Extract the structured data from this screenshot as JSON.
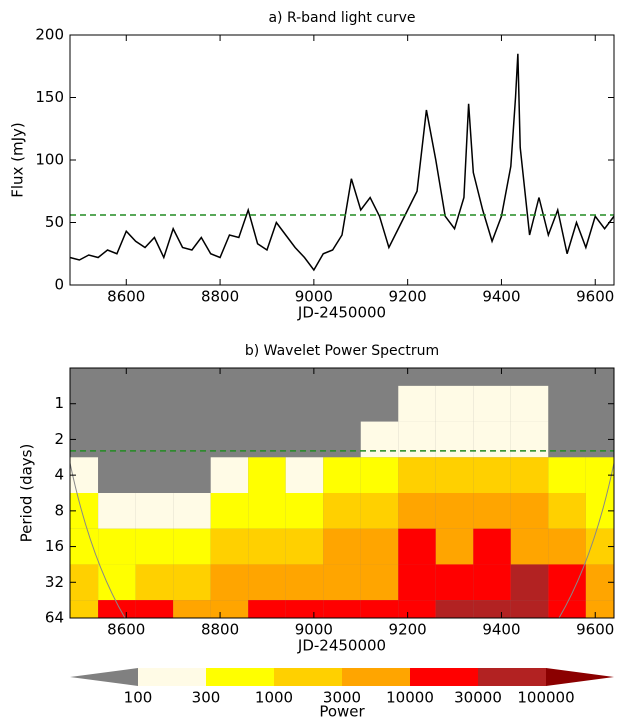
{
  "chart_data": [
    {
      "type": "line",
      "title": "a) R-band light curve",
      "xlabel": "JD-2450000",
      "ylabel": "Flux (mJy)",
      "x": [
        8480,
        8500,
        8520,
        8540,
        8560,
        8580,
        8600,
        8620,
        8640,
        8660,
        8680,
        8700,
        8720,
        8740,
        8760,
        8780,
        8800,
        8820,
        8840,
        8860,
        8880,
        8900,
        8920,
        8940,
        8960,
        8980,
        9000,
        9020,
        9040,
        9060,
        9080,
        9100,
        9120,
        9140,
        9160,
        9180,
        9200,
        9220,
        9240,
        9260,
        9280,
        9300,
        9320,
        9330,
        9340,
        9360,
        9380,
        9400,
        9420,
        9430,
        9435,
        9440,
        9460,
        9480,
        9500,
        9520,
        9540,
        9560,
        9580,
        9600,
        9620,
        9640
      ],
      "values": [
        22,
        20,
        24,
        22,
        28,
        25,
        43,
        35,
        30,
        38,
        22,
        45,
        30,
        28,
        38,
        25,
        22,
        40,
        38,
        60,
        33,
        28,
        50,
        40,
        30,
        22,
        12,
        25,
        28,
        40,
        85,
        60,
        70,
        55,
        30,
        45,
        60,
        75,
        140,
        100,
        55,
        45,
        70,
        145,
        90,
        60,
        35,
        55,
        95,
        150,
        185,
        110,
        40,
        70,
        40,
        60,
        25,
        50,
        30,
        55,
        45,
        55
      ],
      "color": "#000000",
      "threshold": 56,
      "threshold_color": "#228b22",
      "xlim": [
        8480,
        9640
      ],
      "xticks": [
        8600,
        8800,
        9000,
        9200,
        9400,
        9600
      ],
      "ylim": [
        0,
        200
      ],
      "yticks": [
        0,
        50,
        100,
        150,
        200
      ]
    },
    {
      "type": "heatmap",
      "title": "b) Wavelet Power Spectrum",
      "xlabel": "JD-2450000",
      "ylabel": "Period (days)",
      "x": [
        8500,
        8580,
        8660,
        8740,
        8820,
        8900,
        8980,
        9060,
        9140,
        9220,
        9300,
        9380,
        9460,
        9540,
        9620
      ],
      "y": [
        1,
        2,
        4,
        8,
        16,
        32,
        64
      ],
      "values": [
        [
          50,
          50,
          50,
          50,
          50,
          50,
          50,
          50,
          60,
          200,
          150,
          200,
          150,
          60,
          50
        ],
        [
          50,
          50,
          50,
          50,
          50,
          60,
          50,
          80,
          200,
          200,
          150,
          200,
          200,
          80,
          60
        ],
        [
          150,
          50,
          50,
          60,
          200,
          300,
          200,
          400,
          800,
          1500,
          1200,
          1000,
          1500,
          600,
          400
        ],
        [
          500,
          200,
          100,
          150,
          500,
          800,
          600,
          1500,
          2000,
          4000,
          3000,
          3000,
          3000,
          1500,
          800
        ],
        [
          800,
          600,
          400,
          500,
          1500,
          2000,
          1500,
          3000,
          4000,
          12000,
          8000,
          12000,
          6000,
          3000,
          1500
        ],
        [
          1200,
          800,
          1000,
          1200,
          3000,
          5000,
          6000,
          8000,
          9000,
          15000,
          12000,
          20000,
          35000,
          15000,
          4000
        ],
        [
          2000,
          12000,
          12000,
          4000,
          6000,
          15000,
          20000,
          25000,
          25000,
          20000,
          35000,
          40000,
          60000,
          20000,
          6000
        ]
      ],
      "threshold": 2.5,
      "threshold_color": "#228b22",
      "xlim": [
        8480,
        9640
      ],
      "xticks": [
        8600,
        8800,
        9000,
        9200,
        9400,
        9600
      ],
      "ylim": [
        0.5,
        64
      ],
      "yticks": [
        1,
        2,
        4,
        8,
        16,
        32,
        64
      ],
      "log_base": 2,
      "y_inverted": true,
      "colorbar": {
        "label": "Power",
        "levels": [
          100,
          300,
          1000,
          3000,
          10000,
          30000,
          100000
        ],
        "colors": [
          "#808080",
          "#fffbe6",
          "#ffff00",
          "#ffd000",
          "#ffa500",
          "#ff0000",
          "#b22222",
          "#8b0000"
        ]
      }
    }
  ]
}
